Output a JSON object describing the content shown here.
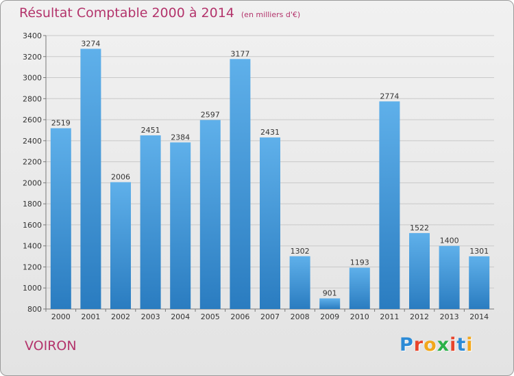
{
  "title": "Résultat Comptable 2000 à 2014",
  "unit": "(en milliers d'€)",
  "town": "VOIRON",
  "logo": {
    "text": "Proxiti",
    "colors": [
      "#2b8ad6",
      "#e8442b",
      "#f2a71b",
      "#2bb14a",
      "#e8442b",
      "#2b8ad6",
      "#f2a71b"
    ]
  },
  "bar_color": "#3f97d8",
  "chart_data": {
    "type": "bar",
    "categories": [
      "2000",
      "2001",
      "2002",
      "2003",
      "2004",
      "2005",
      "2006",
      "2007",
      "2008",
      "2009",
      "2010",
      "2011",
      "2012",
      "2013",
      "2014"
    ],
    "values": [
      2519,
      3274,
      2006,
      2451,
      2384,
      2597,
      3177,
      2431,
      1302,
      901,
      1193,
      2774,
      1522,
      1400,
      1301
    ],
    "ylim": [
      800,
      3400
    ],
    "yticks": [
      800,
      1000,
      1200,
      1400,
      1600,
      1800,
      2000,
      2200,
      2400,
      2600,
      2800,
      3000,
      3200,
      3400
    ],
    "grid": true
  }
}
